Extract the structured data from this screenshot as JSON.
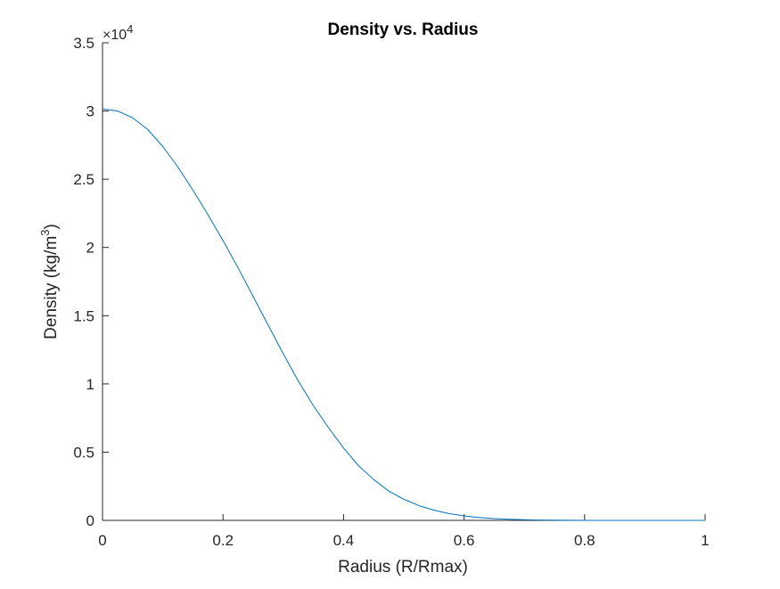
{
  "chart_data": {
    "type": "line",
    "title": "Density vs. Radius",
    "xlabel": "Radius (R/Rmax)",
    "ylabel_main": "Density (kg/m",
    "ylabel_sup": "3",
    "ylabel_close": ")",
    "y_exponent_base": "×10",
    "y_exponent_power": "4",
    "xlim": [
      0,
      1
    ],
    "ylim": [
      0,
      35000
    ],
    "x_ticks": [
      0,
      0.2,
      0.4,
      0.6,
      0.8,
      1
    ],
    "x_tick_labels": [
      "0",
      "0.2",
      "0.4",
      "0.6",
      "0.8",
      "1"
    ],
    "y_ticks": [
      0,
      5000,
      10000,
      15000,
      20000,
      25000,
      30000,
      35000
    ],
    "y_tick_labels": [
      "0",
      "0.5",
      "1",
      "1.5",
      "2",
      "2.5",
      "3",
      "3.5"
    ],
    "grid": false,
    "colors": {
      "line": "#0072BD",
      "axis": "#262626"
    },
    "series": [
      {
        "x": [
          0,
          0.025,
          0.05,
          0.075,
          0.1,
          0.125,
          0.15,
          0.175,
          0.2,
          0.225,
          0.25,
          0.275,
          0.3,
          0.325,
          0.35,
          0.375,
          0.4,
          0.425,
          0.45,
          0.475,
          0.5,
          0.525,
          0.55,
          0.575,
          0.6,
          0.625,
          0.65,
          0.675,
          0.7,
          0.725,
          0.75,
          0.775,
          0.8,
          0.85,
          0.9,
          0.95,
          1
        ],
        "y": [
          30150,
          30000,
          29500,
          28650,
          27400,
          25900,
          24200,
          22400,
          20500,
          18500,
          16400,
          14300,
          12200,
          10200,
          8400,
          6800,
          5300,
          4000,
          3000,
          2150,
          1550,
          1080,
          750,
          500,
          330,
          210,
          130,
          80,
          45,
          25,
          15,
          8,
          4,
          1,
          0,
          0,
          0
        ]
      }
    ]
  }
}
